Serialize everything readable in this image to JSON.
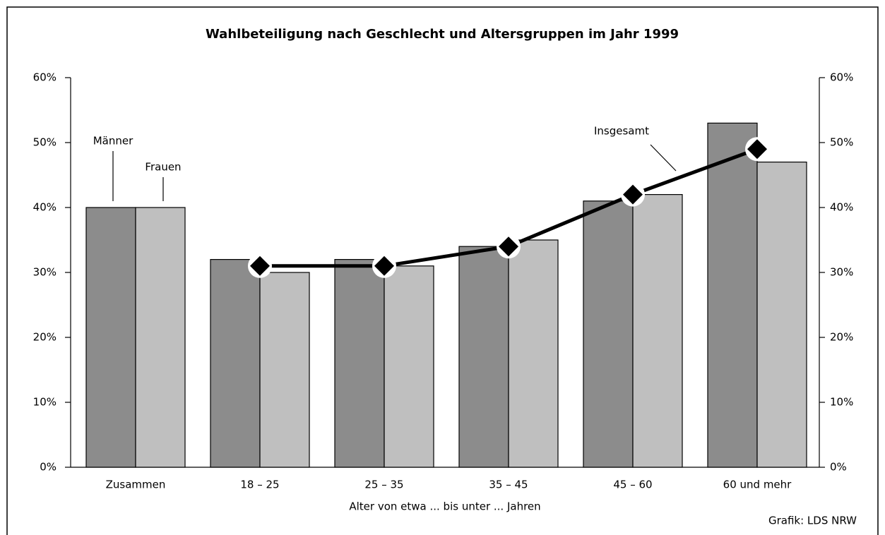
{
  "chart_data": {
    "type": "bar",
    "title": "Wahlbeteiligung nach Geschlecht und Altersgruppen im Jahr 1999",
    "x_label": "Alter von etwa ... bis unter ... Jahren",
    "source": "Grafik: LDS NRW",
    "categories": [
      "Zusammen",
      "18 – 25",
      "25 – 35",
      "35 – 45",
      "45 – 60",
      "60 und mehr"
    ],
    "series": [
      {
        "name": "Männer",
        "color": "#8c8c8c",
        "type": "bar",
        "values": [
          40,
          32,
          32,
          34,
          41,
          53
        ]
      },
      {
        "name": "Frauen",
        "color": "#bfbfbf",
        "type": "bar",
        "values": [
          40,
          30,
          31,
          35,
          42,
          47
        ]
      },
      {
        "name": "Insgesamt",
        "color": "#000000",
        "type": "line",
        "values": [
          null,
          31,
          31,
          34,
          42,
          49
        ]
      }
    ],
    "ylim": [
      0,
      60
    ],
    "yticks": [
      {
        "value": 0,
        "label": "0%"
      },
      {
        "value": 10,
        "label": "10%"
      },
      {
        "value": 20,
        "label": "20%"
      },
      {
        "value": 30,
        "label": "30%"
      },
      {
        "value": 40,
        "label": "40%"
      },
      {
        "value": 50,
        "label": "50%"
      },
      {
        "value": 60,
        "label": "60%"
      }
    ],
    "y2lim": [
      0,
      60
    ],
    "y2ticks": [
      {
        "value": 0,
        "label": "0%"
      },
      {
        "value": 10,
        "label": "10%"
      },
      {
        "value": 20,
        "label": "20%"
      },
      {
        "value": 30,
        "label": "30%"
      },
      {
        "value": 40,
        "label": "40%"
      },
      {
        "value": 50,
        "label": "50%"
      },
      {
        "value": 60,
        "label": "60%"
      }
    ]
  }
}
